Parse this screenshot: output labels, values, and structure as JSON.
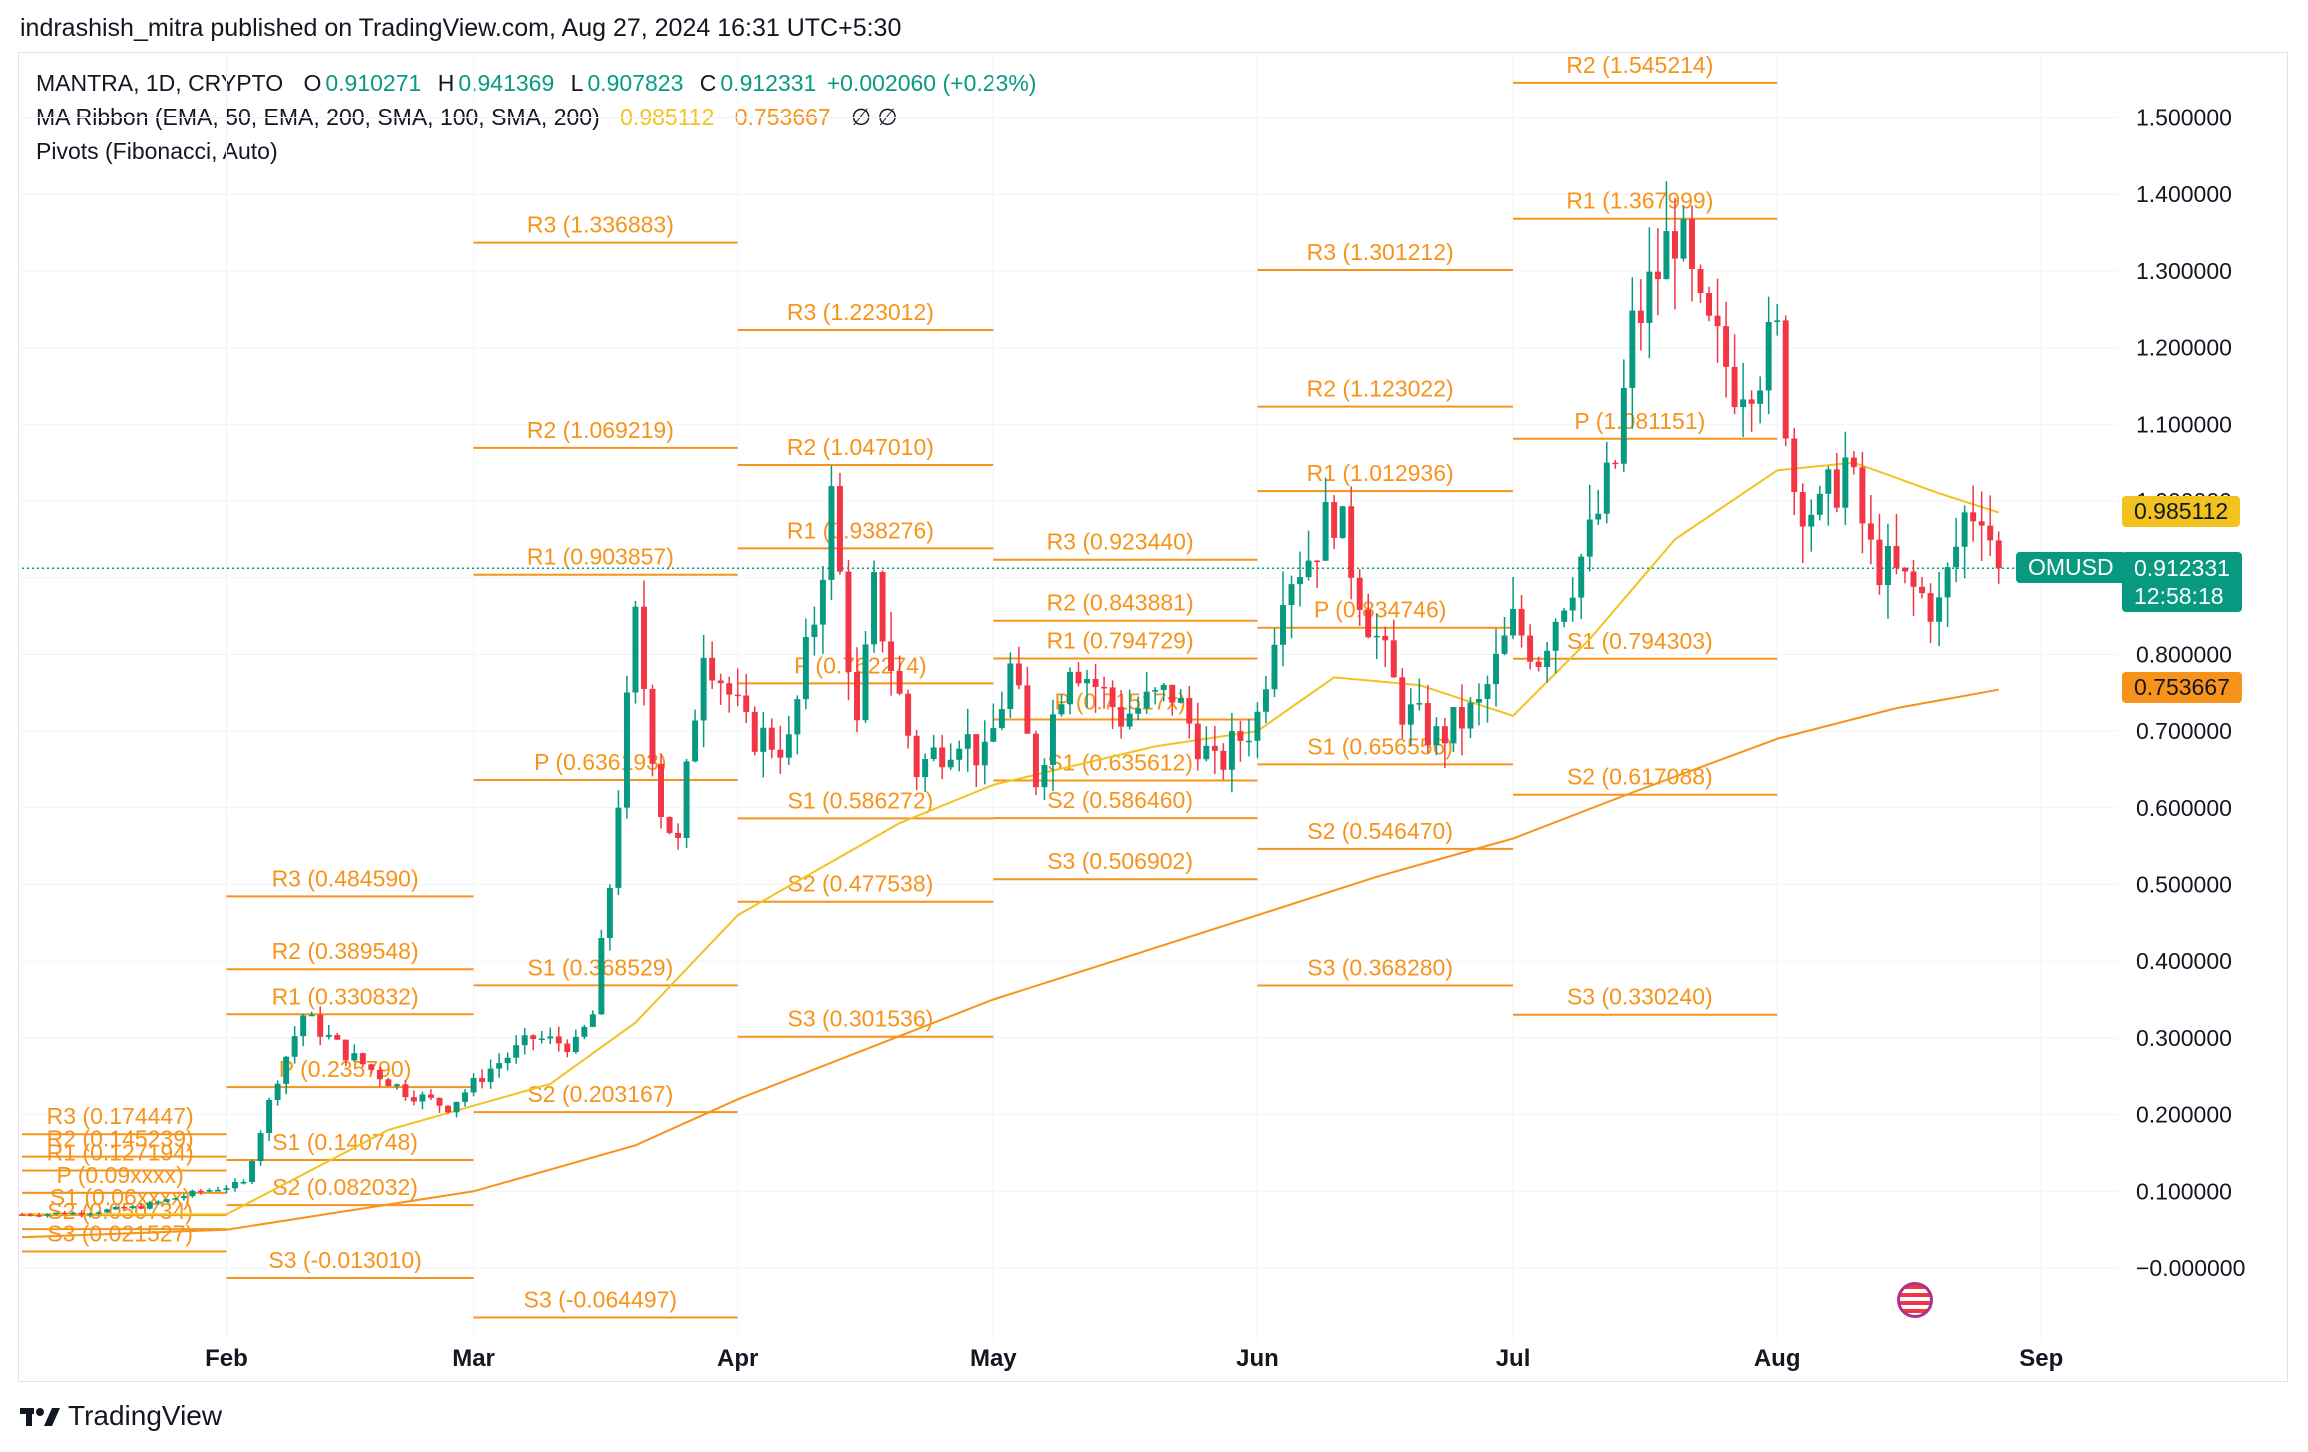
{
  "header": "indrashish_mitra published on TradingView.com, Aug 27, 2024 16:31 UTC+5:30",
  "legend": {
    "symbol_line": "MANTRA, 1D, CRYPTO",
    "o_label": "O",
    "o_value": "0.910271",
    "h_label": "H",
    "h_value": "0.941369",
    "l_label": "L",
    "l_value": "0.907823",
    "c_label": "C",
    "c_value": "0.912331",
    "change": "+0.002060 (+0.23%)",
    "ma_ribbon": "MA Ribbon (EMA, 50, EMA, 200, SMA, 100, SMA, 200)",
    "ma_fast": "0.985112",
    "ma_slow": "0.753667",
    "ma_na": "∅  ∅",
    "pivots": "Pivots (Fibonacci, Auto)"
  },
  "footer": {
    "brand": "TradingView",
    "logo": "tradingview-logo"
  },
  "price_tags": {
    "symbol": "OMUSD",
    "price": "0.912331",
    "countdown": "12:58:18",
    "ma_fast": "0.985112",
    "ma_slow": "0.753667"
  },
  "colors": {
    "up": "#089981",
    "down": "#f23645",
    "pivot": "#f7931a",
    "ma_fast": "#f2c21f",
    "ma_slow": "#f7931a",
    "tag_green": "#089981"
  },
  "chart_data": {
    "type": "candlestick",
    "symbol": "OMUSD",
    "timeframe": "1D",
    "y_ticks": [
      "1.500000",
      "1.400000",
      "1.300000",
      "1.200000",
      "1.100000",
      "1.000000",
      "0.900000",
      "0.800000",
      "0.700000",
      "0.600000",
      "0.500000",
      "0.400000",
      "0.300000",
      "0.200000",
      "0.100000",
      "−0.000000"
    ],
    "y_tick_values": [
      1.5,
      1.4,
      1.3,
      1.2,
      1.1,
      1.0,
      0.9,
      0.8,
      0.7,
      0.6,
      0.5,
      0.4,
      0.3,
      0.2,
      0.1,
      0.0
    ],
    "ylim": [
      -0.1,
      1.6
    ],
    "x_labels": [
      "Feb",
      "Mar",
      "Apr",
      "May",
      "Jun",
      "Jul",
      "Aug",
      "Sep"
    ],
    "x_label_dates": [
      "2024-02-01",
      "2024-03-01",
      "2024-04-01",
      "2024-05-01",
      "2024-06-01",
      "2024-07-01",
      "2024-08-01",
      "2024-09-01"
    ],
    "xlim": [
      "2024-01-08",
      "2024-09-10"
    ],
    "last_price": 0.912331,
    "ohlc_anchors": [
      [
        "2024-01-08",
        0.07
      ],
      [
        "2024-01-15",
        0.072
      ],
      [
        "2024-01-22",
        0.08
      ],
      [
        "2024-01-29",
        0.1
      ],
      [
        "2024-02-03",
        0.11
      ],
      [
        "2024-02-07",
        0.25
      ],
      [
        "2024-02-10",
        0.33
      ],
      [
        "2024-02-15",
        0.28
      ],
      [
        "2024-02-22",
        0.23
      ],
      [
        "2024-02-27",
        0.21
      ],
      [
        "2024-03-03",
        0.26
      ],
      [
        "2024-03-08",
        0.3
      ],
      [
        "2024-03-13",
        0.29
      ],
      [
        "2024-03-15",
        0.33
      ],
      [
        "2024-03-17",
        0.5
      ],
      [
        "2024-03-20",
        0.84
      ],
      [
        "2024-03-23",
        0.6
      ],
      [
        "2024-03-25",
        0.55
      ],
      [
        "2024-03-28",
        0.82
      ],
      [
        "2024-04-02",
        0.7
      ],
      [
        "2024-04-07",
        0.68
      ],
      [
        "2024-04-10",
        0.85
      ],
      [
        "2024-04-12",
        1.0
      ],
      [
        "2024-04-15",
        0.7
      ],
      [
        "2024-04-17",
        0.88
      ],
      [
        "2024-04-22",
        0.65
      ],
      [
        "2024-04-27",
        0.7
      ],
      [
        "2024-04-30",
        0.66
      ],
      [
        "2024-05-03",
        0.78
      ],
      [
        "2024-05-06",
        0.64
      ],
      [
        "2024-05-10",
        0.8
      ],
      [
        "2024-05-16",
        0.72
      ],
      [
        "2024-05-22",
        0.75
      ],
      [
        "2024-05-27",
        0.65
      ],
      [
        "2024-06-01",
        0.72
      ],
      [
        "2024-06-04",
        0.9
      ],
      [
        "2024-06-07",
        0.93
      ],
      [
        "2024-06-10",
        0.99
      ],
      [
        "2024-06-14",
        0.85
      ],
      [
        "2024-06-18",
        0.73
      ],
      [
        "2024-06-22",
        0.69
      ],
      [
        "2024-06-27",
        0.73
      ],
      [
        "2024-07-01",
        0.84
      ],
      [
        "2024-07-04",
        0.8
      ],
      [
        "2024-07-07",
        0.88
      ],
      [
        "2024-07-10",
        0.95
      ],
      [
        "2024-07-13",
        1.05
      ],
      [
        "2024-07-15",
        1.22
      ],
      [
        "2024-07-18",
        1.3
      ],
      [
        "2024-07-20",
        1.36
      ],
      [
        "2024-07-23",
        1.23
      ],
      [
        "2024-07-27",
        1.16
      ],
      [
        "2024-07-30",
        1.18
      ],
      [
        "2024-08-01",
        1.21
      ],
      [
        "2024-08-03",
        1.02
      ],
      [
        "2024-08-06",
        0.98
      ],
      [
        "2024-08-09",
        1.05
      ],
      [
        "2024-08-12",
        0.93
      ],
      [
        "2024-08-16",
        0.89
      ],
      [
        "2024-08-20",
        0.86
      ],
      [
        "2024-08-23",
        0.98
      ],
      [
        "2024-08-25",
        1.0
      ],
      [
        "2024-08-27",
        0.912
      ]
    ],
    "moving_averages": [
      {
        "name": "ma_fast",
        "color": "#f2c21f",
        "value_last": 0.985112,
        "points": [
          [
            "2024-01-08",
            0.07
          ],
          [
            "2024-02-01",
            0.07
          ],
          [
            "2024-02-20",
            0.18
          ],
          [
            "2024-03-10",
            0.24
          ],
          [
            "2024-03-20",
            0.32
          ],
          [
            "2024-04-01",
            0.46
          ],
          [
            "2024-04-20",
            0.58
          ],
          [
            "2024-05-01",
            0.63
          ],
          [
            "2024-05-20",
            0.68
          ],
          [
            "2024-06-01",
            0.7
          ],
          [
            "2024-06-10",
            0.77
          ],
          [
            "2024-06-20",
            0.76
          ],
          [
            "2024-07-01",
            0.72
          ],
          [
            "2024-07-10",
            0.82
          ],
          [
            "2024-07-20",
            0.95
          ],
          [
            "2024-08-01",
            1.04
          ],
          [
            "2024-08-10",
            1.05
          ],
          [
            "2024-08-20",
            1.01
          ],
          [
            "2024-08-27",
            0.985
          ]
        ]
      },
      {
        "name": "ma_slow",
        "color": "#f7931a",
        "value_last": 0.753667,
        "points": [
          [
            "2024-01-08",
            0.04
          ],
          [
            "2024-02-01",
            0.05
          ],
          [
            "2024-03-01",
            0.1
          ],
          [
            "2024-03-20",
            0.16
          ],
          [
            "2024-04-01",
            0.22
          ],
          [
            "2024-05-01",
            0.35
          ],
          [
            "2024-06-01",
            0.46
          ],
          [
            "2024-06-15",
            0.51
          ],
          [
            "2024-07-01",
            0.56
          ],
          [
            "2024-07-15",
            0.62
          ],
          [
            "2024-08-01",
            0.69
          ],
          [
            "2024-08-15",
            0.73
          ],
          [
            "2024-08-27",
            0.754
          ]
        ]
      }
    ],
    "pivot_periods": [
      {
        "start": "2024-01-08",
        "end": "2024-02-01",
        "levels": [
          [
            "R3",
            "0.174447",
            0.174447
          ],
          [
            "R2",
            "0.145239",
            0.145239
          ],
          [
            "R1",
            "0.127194",
            0.127194
          ],
          [
            "P",
            "0.09xxxx",
            0.098
          ],
          [
            "S1",
            "0.06xxxx",
            0.069
          ],
          [
            "S2",
            "0.050734",
            0.050734
          ],
          [
            "S3",
            "0.021527",
            0.021527
          ]
        ]
      },
      {
        "start": "2024-02-01",
        "end": "2024-03-01",
        "levels": [
          [
            "R3",
            "0.484590",
            0.48459
          ],
          [
            "R2",
            "0.389548",
            0.389548
          ],
          [
            "R1",
            "0.330832",
            0.330832
          ],
          [
            "P",
            "0.235790",
            0.23579
          ],
          [
            "S1",
            "0.140748",
            0.140748
          ],
          [
            "S2",
            "0.082032",
            0.082032
          ],
          [
            "S3",
            "-0.013010",
            -0.01301
          ]
        ]
      },
      {
        "start": "2024-03-01",
        "end": "2024-04-01",
        "levels": [
          [
            "R3",
            "1.336883",
            1.336883
          ],
          [
            "R2",
            "1.069219",
            1.069219
          ],
          [
            "R1",
            "0.903857",
            0.903857
          ],
          [
            "P",
            "0.636193",
            0.636193
          ],
          [
            "S1",
            "0.368529",
            0.368529
          ],
          [
            "S2",
            "0.203167",
            0.203167
          ],
          [
            "S3",
            "-0.064497",
            -0.064497
          ]
        ]
      },
      {
        "start": "2024-04-01",
        "end": "2024-05-01",
        "levels": [
          [
            "R3",
            "1.223012",
            1.223012
          ],
          [
            "R2",
            "1.047010",
            1.04701
          ],
          [
            "R1",
            "0.938276",
            0.938276
          ],
          [
            "P",
            "0.762274",
            0.762274
          ],
          [
            "S1",
            "0.586272",
            0.586272
          ],
          [
            "S2",
            "0.477538",
            0.477538
          ],
          [
            "S3",
            "0.301536",
            0.301536
          ]
        ]
      },
      {
        "start": "2024-05-01",
        "end": "2024-06-01",
        "levels": [
          [
            "R3",
            "0.923440",
            0.92344
          ],
          [
            "R2",
            "0.843881",
            0.843881
          ],
          [
            "R1",
            "0.794729",
            0.794729
          ],
          [
            "P",
            "0.71517x",
            0.715171
          ],
          [
            "S1",
            "0.635612",
            0.635612
          ],
          [
            "S2",
            "0.586460",
            0.58646
          ],
          [
            "S3",
            "0.506902",
            0.506902
          ]
        ]
      },
      {
        "start": "2024-06-01",
        "end": "2024-07-01",
        "levels": [
          [
            "R3",
            "1.301212",
            1.301212
          ],
          [
            "R2",
            "1.123022",
            1.123022
          ],
          [
            "R1",
            "1.012936",
            1.012936
          ],
          [
            "P",
            "0.834746",
            0.834746
          ],
          [
            "S1",
            "0.656556",
            0.656556
          ],
          [
            "S2",
            "0.546470",
            0.54647
          ],
          [
            "S3",
            "0.368280",
            0.36828
          ]
        ]
      },
      {
        "start": "2024-07-01",
        "end": "2024-08-01",
        "levels": [
          [
            "R2",
            "1.545214",
            1.545214
          ],
          [
            "R1",
            "1.367999",
            1.367999
          ],
          [
            "P",
            "1.081151",
            1.081151
          ],
          [
            "S1",
            "0.794303",
            0.794303
          ],
          [
            "S2",
            "0.617088",
            0.617088
          ],
          [
            "S3",
            "0.330240",
            0.33024
          ]
        ]
      }
    ]
  }
}
